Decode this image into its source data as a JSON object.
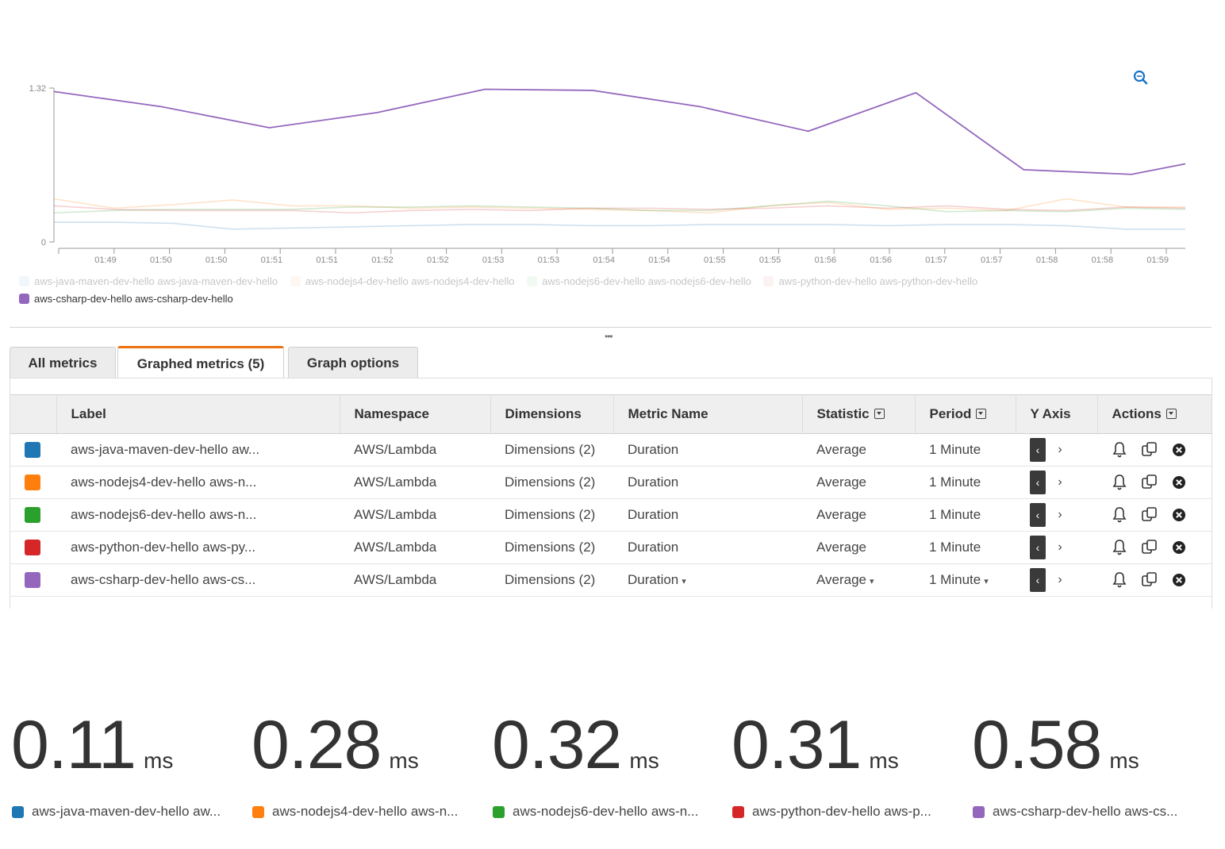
{
  "chart_data": {
    "type": "line",
    "ylim": [
      0,
      1.32
    ],
    "y_ticks": [
      "0",
      "1.32"
    ],
    "x_tick_labels": [
      "01:49",
      "01:50",
      "01:50",
      "01:51",
      "01:51",
      "01:52",
      "01:52",
      "01:53",
      "01:53",
      "01:54",
      "01:54",
      "01:55",
      "01:55",
      "01:56",
      "01:56",
      "01:57",
      "01:57",
      "01:58",
      "01:58",
      "01:59"
    ],
    "series": [
      {
        "name": "aws-java-maven-dev-hello aws-java-maven-dev-hello",
        "color": "#1f77b4",
        "highlighted": false,
        "values": [
          0.17,
          0.17,
          0.16,
          0.11,
          0.12,
          0.13,
          0.14,
          0.15,
          0.15,
          0.14,
          0.14,
          0.15,
          0.15,
          0.15,
          0.14,
          0.15,
          0.15,
          0.14,
          0.11,
          0.11
        ]
      },
      {
        "name": "aws-nodejs4-dev-hello aws-nodejs4-dev-hello",
        "color": "#ff7f0e",
        "highlighted": false,
        "values": [
          0.37,
          0.29,
          0.32,
          0.36,
          0.31,
          0.31,
          0.29,
          0.3,
          0.29,
          0.28,
          0.27,
          0.25,
          0.31,
          0.34,
          0.28,
          0.29,
          0.27,
          0.37,
          0.3,
          0.3
        ]
      },
      {
        "name": "aws-nodejs6-dev-hello aws-nodejs6-dev-hello",
        "color": "#2ca02c",
        "highlighted": false,
        "values": [
          0.25,
          0.27,
          0.28,
          0.28,
          0.28,
          0.3,
          0.3,
          0.31,
          0.3,
          0.29,
          0.27,
          0.27,
          0.31,
          0.35,
          0.31,
          0.26,
          0.27,
          0.26,
          0.29,
          0.28
        ]
      },
      {
        "name": "aws-python-dev-hello aws-python-dev-hello",
        "color": "#d62728",
        "highlighted": false,
        "values": [
          0.31,
          0.28,
          0.27,
          0.27,
          0.27,
          0.25,
          0.27,
          0.28,
          0.27,
          0.29,
          0.29,
          0.28,
          0.29,
          0.31,
          0.29,
          0.31,
          0.28,
          0.27,
          0.3,
          0.29
        ]
      },
      {
        "name": "aws-csharp-dev-hello aws-csharp-dev-hello",
        "color": "#9467bd",
        "highlighted": true,
        "values": [
          1.29,
          1.16,
          0.98,
          1.11,
          1.31,
          1.3,
          1.16,
          0.95,
          1.28,
          0.62,
          0.58,
          0.67
        ]
      }
    ],
    "csharp_x_index": [
      0,
      2,
      4,
      6,
      8,
      10,
      12,
      14,
      16,
      18,
      20,
      21
    ]
  },
  "legend": [
    {
      "label": "aws-java-maven-dev-hello aws-java-maven-dev-hello",
      "color": "#cfe2f3",
      "dim": true
    },
    {
      "label": "aws-nodejs4-dev-hello aws-nodejs4-dev-hello",
      "color": "#fde4cd",
      "dim": true
    },
    {
      "label": "aws-nodejs6-dev-hello aws-nodejs6-dev-hello",
      "color": "#d3ecd1",
      "dim": true
    },
    {
      "label": "aws-python-dev-hello aws-python-dev-hello",
      "color": "#f7d2d2",
      "dim": true
    },
    {
      "label": "aws-csharp-dev-hello aws-csharp-dev-hello",
      "color": "#9467bd",
      "dim": false
    }
  ],
  "tabs": {
    "all_metrics": "All metrics",
    "graphed_metrics": "Graphed metrics (5)",
    "graph_options": "Graph options"
  },
  "table": {
    "headers": {
      "label": "Label",
      "namespace": "Namespace",
      "dimensions": "Dimensions",
      "metric_name": "Metric Name",
      "statistic": "Statistic",
      "period": "Period",
      "y_axis": "Y Axis",
      "actions": "Actions"
    },
    "rows": [
      {
        "color": "#1f77b4",
        "label": "aws-java-maven-dev-hello aw...",
        "namespace": "AWS/Lambda",
        "dimensions": "Dimensions (2)",
        "metric": "Duration",
        "statistic": "Average",
        "period": "1 Minute"
      },
      {
        "color": "#ff7f0e",
        "label": "aws-nodejs4-dev-hello aws-n...",
        "namespace": "AWS/Lambda",
        "dimensions": "Dimensions (2)",
        "metric": "Duration",
        "statistic": "Average",
        "period": "1 Minute"
      },
      {
        "color": "#2ca02c",
        "label": "aws-nodejs6-dev-hello aws-n...",
        "namespace": "AWS/Lambda",
        "dimensions": "Dimensions (2)",
        "metric": "Duration",
        "statistic": "Average",
        "period": "1 Minute"
      },
      {
        "color": "#d62728",
        "label": "aws-python-dev-hello aws-py...",
        "namespace": "AWS/Lambda",
        "dimensions": "Dimensions (2)",
        "metric": "Duration",
        "statistic": "Average",
        "period": "1 Minute"
      },
      {
        "color": "#9467bd",
        "label": "aws-csharp-dev-hello aws-cs...",
        "namespace": "AWS/Lambda",
        "dimensions": "Dimensions (2)",
        "metric": "Duration",
        "statistic": "Average",
        "period": "1 Minute"
      }
    ]
  },
  "stats": [
    {
      "value": "0.11",
      "unit": "ms",
      "color": "#1f77b4",
      "label": "aws-java-maven-dev-hello aw..."
    },
    {
      "value": "0.28",
      "unit": "ms",
      "color": "#ff7f0e",
      "label": "aws-nodejs4-dev-hello aws-n..."
    },
    {
      "value": "0.32",
      "unit": "ms",
      "color": "#2ca02c",
      "label": "aws-nodejs6-dev-hello aws-n..."
    },
    {
      "value": "0.31",
      "unit": "ms",
      "color": "#d62728",
      "label": "aws-python-dev-hello aws-p..."
    },
    {
      "value": "0.58",
      "unit": "ms",
      "color": "#9467bd",
      "label": "aws-csharp-dev-hello aws-cs..."
    }
  ]
}
